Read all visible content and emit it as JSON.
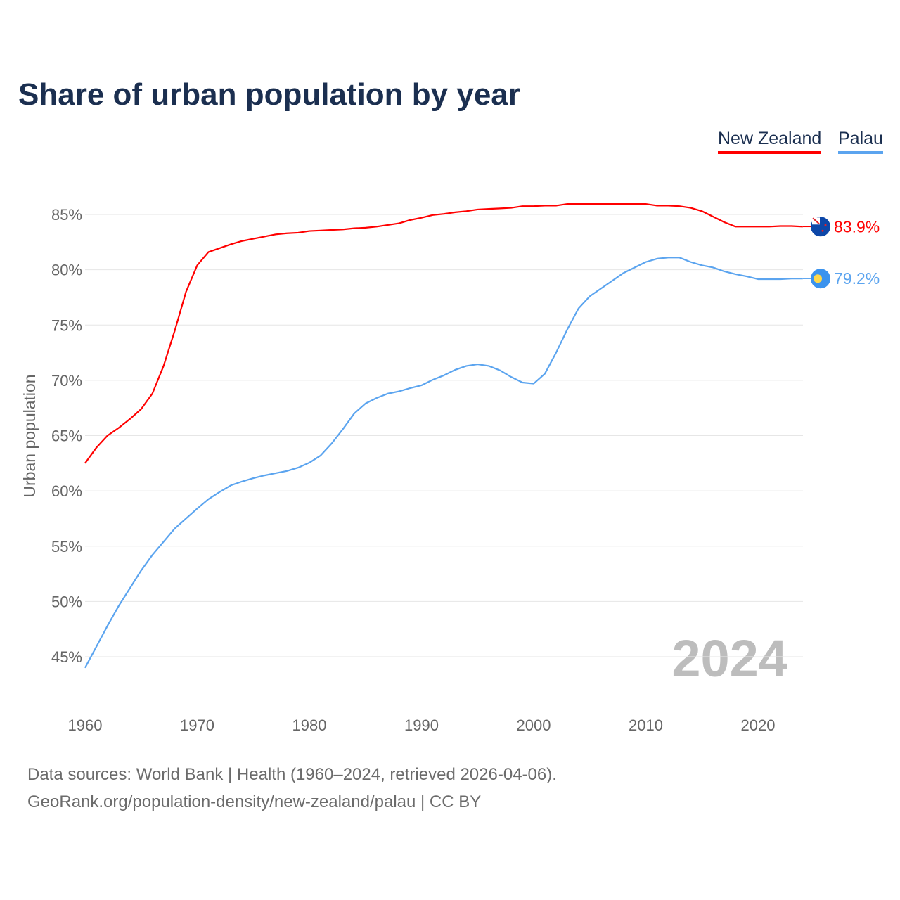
{
  "chart_data": {
    "type": "line",
    "title": "Share of urban population by year",
    "xlabel": "",
    "ylabel": "Urban population",
    "xlim": [
      1960,
      2024
    ],
    "ylim": [
      42,
      87
    ],
    "x_ticks": [
      1960,
      1970,
      1980,
      1990,
      2000,
      2010,
      2020
    ],
    "y_ticks": [
      45,
      50,
      55,
      60,
      65,
      70,
      75,
      80,
      85
    ],
    "y_tick_labels": [
      "45%",
      "50%",
      "55%",
      "60%",
      "65%",
      "70%",
      "75%",
      "80%",
      "85%"
    ],
    "x_tick_labels": [
      "1960",
      "1970",
      "1980",
      "1990",
      "2000",
      "2010",
      "2020"
    ],
    "grid": true,
    "legend_position": "top-right",
    "year_watermark": "2024",
    "series": [
      {
        "name": "New Zealand",
        "color": "#ff0000",
        "end_label": "83.9%",
        "flag": "new-zealand",
        "values": [
          62.5,
          63.9,
          65.0,
          65.7,
          66.5,
          67.4,
          68.8,
          71.3,
          74.5,
          78.0,
          80.4,
          81.6,
          81.95,
          82.3,
          82.6,
          82.8,
          83.0,
          83.2,
          83.3,
          83.35,
          83.5,
          83.55,
          83.6,
          83.65,
          83.75,
          83.8,
          83.9,
          84.05,
          84.2,
          84.5,
          84.7,
          84.95,
          85.05,
          85.2,
          85.3,
          85.45,
          85.5,
          85.55,
          85.6,
          85.75,
          85.75,
          85.8,
          85.8,
          85.95,
          85.95,
          85.95,
          85.95,
          85.95,
          85.95,
          85.95,
          85.95,
          85.8,
          85.8,
          85.75,
          85.6,
          85.3,
          84.8,
          84.3,
          83.9,
          83.9,
          83.9,
          83.9,
          83.95,
          83.95,
          83.9
        ]
      },
      {
        "name": "Palau",
        "color": "#5ba4ef",
        "end_label": "79.2%",
        "flag": "palau",
        "values": [
          44.0,
          45.9,
          47.8,
          49.6,
          51.2,
          52.8,
          54.2,
          55.4,
          56.6,
          57.5,
          58.4,
          59.25,
          59.9,
          60.5,
          60.85,
          61.15,
          61.4,
          61.6,
          61.8,
          62.1,
          62.55,
          63.2,
          64.3,
          65.6,
          67.0,
          67.9,
          68.4,
          68.8,
          69.0,
          69.3,
          69.55,
          70.05,
          70.45,
          70.95,
          71.3,
          71.45,
          71.3,
          70.9,
          70.3,
          69.8,
          69.7,
          70.6,
          72.5,
          74.6,
          76.5,
          77.6,
          78.3,
          79.0,
          79.7,
          80.2,
          80.7,
          81.0,
          81.1,
          81.1,
          80.7,
          80.4,
          80.2,
          79.85,
          79.6,
          79.4,
          79.15,
          79.15,
          79.15,
          79.2,
          79.2
        ]
      }
    ]
  },
  "footer": {
    "sources": "Data sources: World Bank | Health (1960–2024, retrieved 2026-04-06).",
    "credit": "GeoRank.org/population-density/new-zealand/palau | CC BY"
  }
}
